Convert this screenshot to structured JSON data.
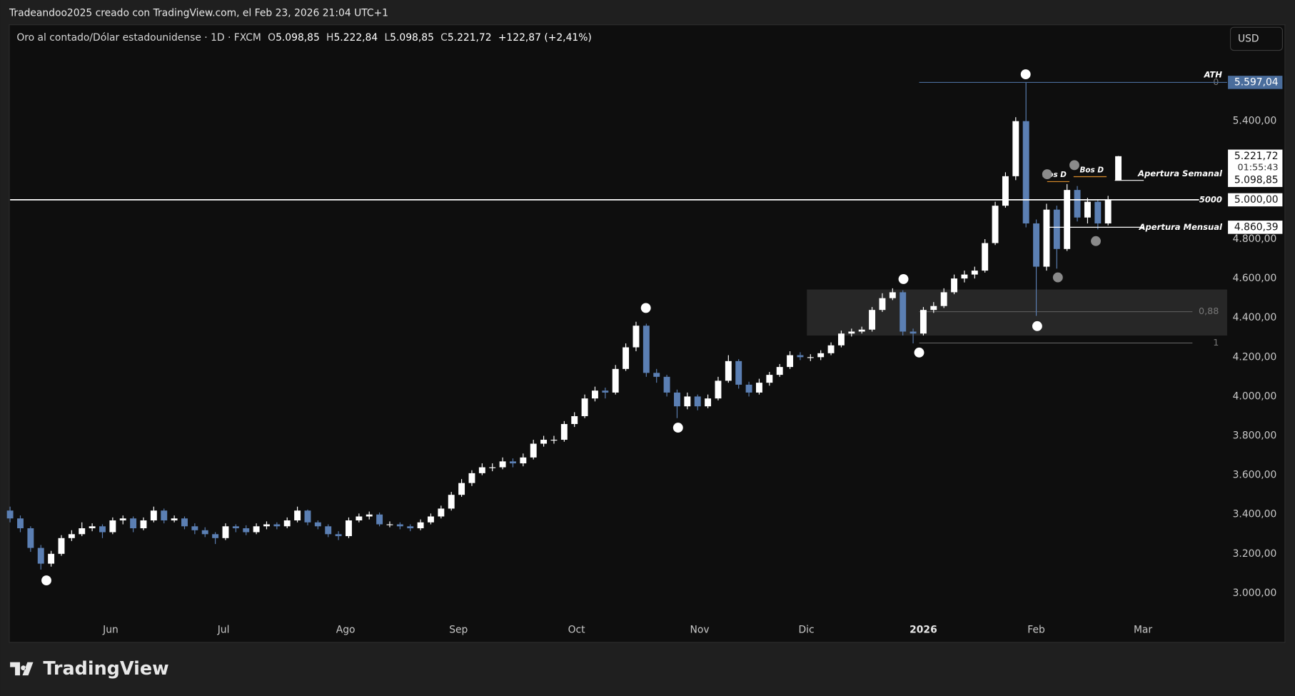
{
  "header": {
    "title": "Tradeandoo2025 creado con TradingView.com, el Feb 23, 2026 21:04 UTC+1"
  },
  "chart_data": {
    "type": "candlestick",
    "symbol": "Oro al contado/Dólar estadounidense · 1D · FXCM",
    "legend": {
      "o_label": "O",
      "o": "5.098,85",
      "h_label": "H",
      "h": "5.222,84",
      "l_label": "L",
      "l": "5.098,85",
      "c_label": "C",
      "c": "5.221,72",
      "change": "+122,87 (+2,41%)"
    },
    "currency": "USD",
    "up_color": "#ffffff",
    "down_color": "#5b7fb3",
    "grid": false,
    "xlim": [
      0,
      118.6
    ],
    "ylim": [
      2750,
      5890
    ],
    "xticks": [
      {
        "value": 9.8,
        "label": "Jun"
      },
      {
        "value": 20.8,
        "label": "Jul"
      },
      {
        "value": 32.7,
        "label": "Ago"
      },
      {
        "value": 43.7,
        "label": "Sep"
      },
      {
        "value": 55.2,
        "label": "Oct"
      },
      {
        "value": 67.2,
        "label": "Nov"
      },
      {
        "value": 77.6,
        "label": "Dic"
      },
      {
        "value": 89.0,
        "label": "2026"
      },
      {
        "value": 100.0,
        "label": "Feb"
      },
      {
        "value": 110.4,
        "label": "Mar"
      }
    ],
    "yticks": [
      {
        "value": 3000,
        "label": "3.000,00"
      },
      {
        "value": 3200,
        "label": "3.200,00"
      },
      {
        "value": 3400,
        "label": "3.400,00"
      },
      {
        "value": 3600,
        "label": "3.600,00"
      },
      {
        "value": 3800,
        "label": "3.800,00"
      },
      {
        "value": 4000,
        "label": "4.000,00"
      },
      {
        "value": 4200,
        "label": "4.200,00"
      },
      {
        "value": 4400,
        "label": "4.400,00"
      },
      {
        "value": 4600,
        "label": "4.600,00"
      },
      {
        "value": 4800,
        "label": "4.800,00"
      },
      {
        "value": 5400,
        "label": "5.400,00"
      }
    ],
    "open": [
      3420,
      3380,
      3330,
      3230,
      3150,
      3200,
      3280,
      3300,
      3330,
      3340,
      3310,
      3370,
      3380,
      3330,
      3370,
      3420,
      3370,
      3380,
      3340,
      3320,
      3300,
      3280,
      3340,
      3330,
      3310,
      3340,
      3350,
      3340,
      3370,
      3420,
      3360,
      3340,
      3300,
      3290,
      3370,
      3390,
      3400,
      3350,
      3350,
      3340,
      3330,
      3360,
      3390,
      3430,
      3500,
      3560,
      3610,
      3640,
      3640,
      3670,
      3660,
      3690,
      3760,
      3780,
      3780,
      3860,
      3900,
      3990,
      4030,
      4020,
      4140,
      4250,
      4360,
      4120,
      4100,
      4020,
      3950,
      4000,
      3950,
      3990,
      4080,
      4180,
      4060,
      4020,
      4070,
      4110,
      4150,
      4210,
      4200,
      4200,
      4220,
      4260,
      4320,
      4330,
      4340,
      4440,
      4500,
      4530,
      4330,
      4320,
      4440,
      4460,
      4530,
      4600,
      4620,
      4640,
      4780,
      4970,
      5120,
      5400,
      4880,
      4660,
      4950,
      4750,
      5050,
      4910,
      4990,
      4880,
      5098.85
    ],
    "high": [
      3440,
      3395,
      3340,
      3245,
      3215,
      3295,
      3320,
      3360,
      3355,
      3350,
      3385,
      3395,
      3390,
      3385,
      3440,
      3430,
      3395,
      3390,
      3355,
      3335,
      3310,
      3355,
      3350,
      3345,
      3355,
      3365,
      3360,
      3385,
      3440,
      3425,
      3370,
      3350,
      3315,
      3385,
      3405,
      3415,
      3410,
      3365,
      3360,
      3350,
      3375,
      3405,
      3445,
      3515,
      3580,
      3625,
      3660,
      3660,
      3690,
      3685,
      3710,
      3780,
      3800,
      3800,
      3875,
      3920,
      4010,
      4050,
      4045,
      4160,
      4270,
      4380,
      4370,
      4140,
      4110,
      4035,
      4020,
      4010,
      4010,
      4100,
      4210,
      4190,
      4075,
      4090,
      4125,
      4165,
      4230,
      4225,
      4215,
      4235,
      4275,
      4335,
      4345,
      4355,
      4455,
      4525,
      4550,
      4540,
      4345,
      4455,
      4480,
      4550,
      4620,
      4640,
      4660,
      4800,
      4990,
      5140,
      5420,
      5597.04,
      4900,
      4980,
      4970,
      5080,
      5070,
      5010,
      5000,
      5020,
      5222.84
    ],
    "low": [
      3360,
      3310,
      3210,
      3120,
      3135,
      3190,
      3265,
      3290,
      3315,
      3280,
      3300,
      3350,
      3310,
      3320,
      3360,
      3355,
      3360,
      3325,
      3300,
      3285,
      3250,
      3270,
      3310,
      3295,
      3300,
      3325,
      3325,
      3330,
      3360,
      3345,
      3325,
      3285,
      3270,
      3280,
      3360,
      3375,
      3340,
      3335,
      3325,
      3315,
      3320,
      3350,
      3380,
      3420,
      3490,
      3545,
      3600,
      3620,
      3630,
      3640,
      3645,
      3680,
      3745,
      3760,
      3770,
      3845,
      3890,
      3975,
      3990,
      4010,
      4130,
      4230,
      4100,
      4070,
      4000,
      3890,
      3935,
      3930,
      3940,
      3980,
      4070,
      4040,
      4000,
      4010,
      4055,
      4100,
      4140,
      4185,
      4180,
      4185,
      4210,
      4250,
      4305,
      4320,
      4330,
      4430,
      4490,
      4310,
      4270,
      4310,
      4425,
      4450,
      4520,
      4580,
      4600,
      4630,
      4770,
      4960,
      5100,
      4860,
      4410,
      4640,
      4650,
      4740,
      4890,
      4880,
      4850,
      4870,
      5098.85
    ],
    "close": [
      3380,
      3330,
      3230,
      3150,
      3200,
      3280,
      3300,
      3330,
      3340,
      3310,
      3370,
      3380,
      3330,
      3370,
      3420,
      3370,
      3380,
      3340,
      3320,
      3300,
      3280,
      3340,
      3330,
      3310,
      3340,
      3350,
      3340,
      3370,
      3420,
      3360,
      3340,
      3300,
      3290,
      3370,
      3390,
      3400,
      3350,
      3350,
      3340,
      3330,
      3360,
      3390,
      3430,
      3500,
      3560,
      3610,
      3640,
      3640,
      3670,
      3660,
      3690,
      3760,
      3780,
      3780,
      3860,
      3900,
      3990,
      4030,
      4020,
      4140,
      4250,
      4360,
      4120,
      4100,
      4020,
      3950,
      4000,
      3950,
      3990,
      4080,
      4180,
      4060,
      4020,
      4070,
      4110,
      4150,
      4210,
      4200,
      4200,
      4220,
      4260,
      4320,
      4330,
      4340,
      4440,
      4500,
      4530,
      4330,
      4320,
      4440,
      4460,
      4530,
      4600,
      4620,
      4640,
      4780,
      4970,
      5120,
      5400,
      4880,
      4660,
      4950,
      4750,
      5050,
      4910,
      4990,
      4880,
      5000,
      5221.72
    ],
    "last_price": {
      "value": 5221.72,
      "label": "5.221,72",
      "countdown": "01:55:43"
    },
    "ath": {
      "name": "ATH",
      "value": 5597.04,
      "label": "5.597,04"
    },
    "levels": [
      {
        "name": "5000",
        "value": 5000,
        "label": "5.000,00"
      },
      {
        "name": "Apertura Semanal",
        "value": 5098.85,
        "label": "5.098,85"
      },
      {
        "name": "Apertura Mensual",
        "value": 4860.39,
        "label": "4.860,39"
      }
    ],
    "fib": [
      {
        "label": "0",
        "value": 5597.04
      },
      {
        "label": "0,88",
        "value": 4431
      },
      {
        "label": "1",
        "value": 4272
      }
    ],
    "zone": {
      "top": 4544,
      "bottom": 4310
    },
    "bos": [
      "Bos D",
      "Bos D"
    ]
  },
  "footer": {
    "logo": "TradingView"
  }
}
